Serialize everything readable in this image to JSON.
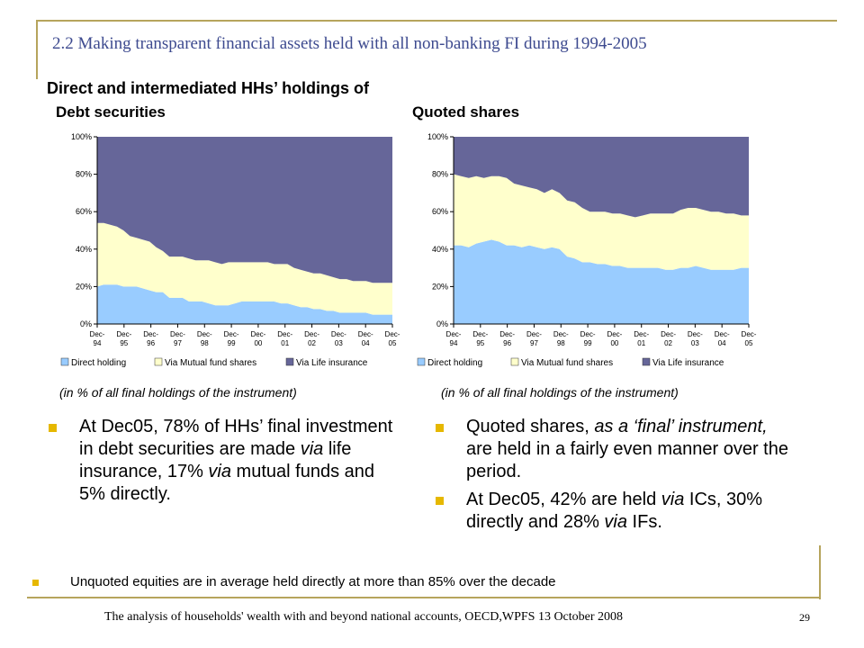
{
  "slide": {
    "title": "2.2 Making transparent financial assets held with all non-banking FI during 1994-2005",
    "subtitle": "Direct and intermediated HHs’ holdings of",
    "footer": "The analysis of households' wealth with and beyond national accounts, OECD,WPFS 13 October 2008",
    "page_number": "29"
  },
  "colors": {
    "direct": "#99ccff",
    "mutual": "#ffffcc",
    "life": "#666699",
    "rule": "#b6a45c",
    "title": "#3d4a8f",
    "bullet": "#e6b800"
  },
  "chart_data": [
    {
      "type": "area",
      "stacked": true,
      "title": "Debt securities",
      "caption": "(in % of all final holdings of the instrument)",
      "xlabel": "",
      "ylabel": "",
      "ylim": [
        0,
        100
      ],
      "yticks": [
        "0%",
        "20%",
        "40%",
        "60%",
        "80%",
        "100%"
      ],
      "xticks": [
        "Dec-94",
        "Dec-95",
        "Dec-96",
        "Dec-97",
        "Dec-98",
        "Dec-99",
        "Dec-00",
        "Dec-01",
        "Dec-02",
        "Dec-03",
        "Dec-04",
        "Dec-05"
      ],
      "legend": "bottom",
      "series": [
        {
          "name": "Direct holding",
          "values": [
            20,
            21,
            21,
            21,
            20,
            20,
            20,
            19,
            18,
            17,
            17,
            14,
            14,
            14,
            12,
            12,
            12,
            11,
            10,
            10,
            10,
            11,
            12,
            12,
            12,
            12,
            12,
            12,
            11,
            11,
            10,
            9,
            9,
            8,
            8,
            7,
            7,
            6,
            6,
            6,
            6,
            6,
            5,
            5,
            5,
            5
          ]
        },
        {
          "name": "Via Mutual fund shares",
          "values": [
            34,
            33,
            32,
            31,
            30,
            27,
            26,
            26,
            26,
            24,
            22,
            22,
            22,
            22,
            23,
            22,
            22,
            23,
            23,
            22,
            23,
            22,
            21,
            21,
            21,
            21,
            21,
            20,
            21,
            21,
            20,
            20,
            19,
            19,
            19,
            19,
            18,
            18,
            18,
            17,
            17,
            17,
            17,
            17,
            17,
            17
          ]
        },
        {
          "name": "Via Life insurance",
          "values": [
            46,
            46,
            47,
            48,
            50,
            53,
            54,
            55,
            56,
            59,
            61,
            64,
            64,
            64,
            65,
            66,
            66,
            66,
            67,
            68,
            67,
            67,
            67,
            67,
            67,
            67,
            67,
            68,
            68,
            68,
            70,
            71,
            72,
            73,
            73,
            74,
            75,
            76,
            76,
            77,
            77,
            77,
            78,
            78,
            78,
            78
          ]
        }
      ]
    },
    {
      "type": "area",
      "stacked": true,
      "title": "Quoted shares",
      "caption": "(in % of all final holdings of the instrument)",
      "xlabel": "",
      "ylabel": "",
      "ylim": [
        0,
        100
      ],
      "yticks": [
        "0%",
        "20%",
        "40%",
        "60%",
        "80%",
        "100%"
      ],
      "xticks": [
        "Dec-94",
        "Dec-95",
        "Dec-96",
        "Dec-97",
        "Dec-98",
        "Dec-99",
        "Dec-00",
        "Dec-01",
        "Dec-02",
        "Dec-03",
        "Dec-04",
        "Dec-05"
      ],
      "legend": "bottom",
      "series": [
        {
          "name": "Direct holding",
          "values": [
            42,
            42,
            41,
            43,
            44,
            45,
            44,
            42,
            42,
            41,
            42,
            41,
            40,
            41,
            40,
            36,
            35,
            33,
            33,
            32,
            32,
            31,
            31,
            30,
            30,
            30,
            30,
            30,
            29,
            29,
            30,
            30,
            31,
            30,
            29,
            29,
            29,
            29,
            30,
            30
          ]
        },
        {
          "name": "Via Mutual fund shares",
          "values": [
            38,
            37,
            37,
            36,
            34,
            34,
            35,
            36,
            33,
            33,
            31,
            31,
            30,
            31,
            30,
            30,
            30,
            29,
            27,
            28,
            28,
            28,
            28,
            28,
            27,
            28,
            29,
            29,
            30,
            30,
            31,
            32,
            31,
            31,
            31,
            31,
            30,
            30,
            28,
            28
          ]
        },
        {
          "name": "Via Life insurance",
          "values": [
            20,
            21,
            22,
            21,
            22,
            21,
            21,
            22,
            25,
            26,
            27,
            28,
            30,
            28,
            30,
            34,
            35,
            38,
            40,
            40,
            40,
            41,
            41,
            42,
            43,
            42,
            41,
            41,
            41,
            41,
            39,
            38,
            38,
            39,
            40,
            40,
            41,
            41,
            42,
            42
          ]
        }
      ]
    }
  ],
  "bullets_left": [
    {
      "parts": [
        {
          "text": "At Dec05, 78% of HHs’ final investment in debt securities are made ",
          "style": "normal"
        },
        {
          "text": "via",
          "style": "italic"
        },
        {
          "text": " life insurance, 17% ",
          "style": "normal"
        },
        {
          "text": "via",
          "style": "italic"
        },
        {
          "text": " mutual funds and 5% directly.",
          "style": "normal"
        }
      ]
    }
  ],
  "bullets_right": [
    {
      "parts": [
        {
          "text": "Quoted shares, ",
          "style": "normal"
        },
        {
          "text": "as a ‘final’ instrument,",
          "style": "italic"
        },
        {
          "text": " are held in a fairly even manner over the period.",
          "style": "normal"
        }
      ]
    },
    {
      "parts": [
        {
          "text": "At Dec05, 42% are held ",
          "style": "normal"
        },
        {
          "text": "via",
          "style": "italic"
        },
        {
          "text": " ICs, 30% directly and 28% ",
          "style": "normal"
        },
        {
          "text": "via",
          "style": "italic"
        },
        {
          "text": " IFs.",
          "style": "normal"
        }
      ]
    }
  ],
  "bottom_note": "Unquoted equities are in average held directly at more than 85% over the decade"
}
